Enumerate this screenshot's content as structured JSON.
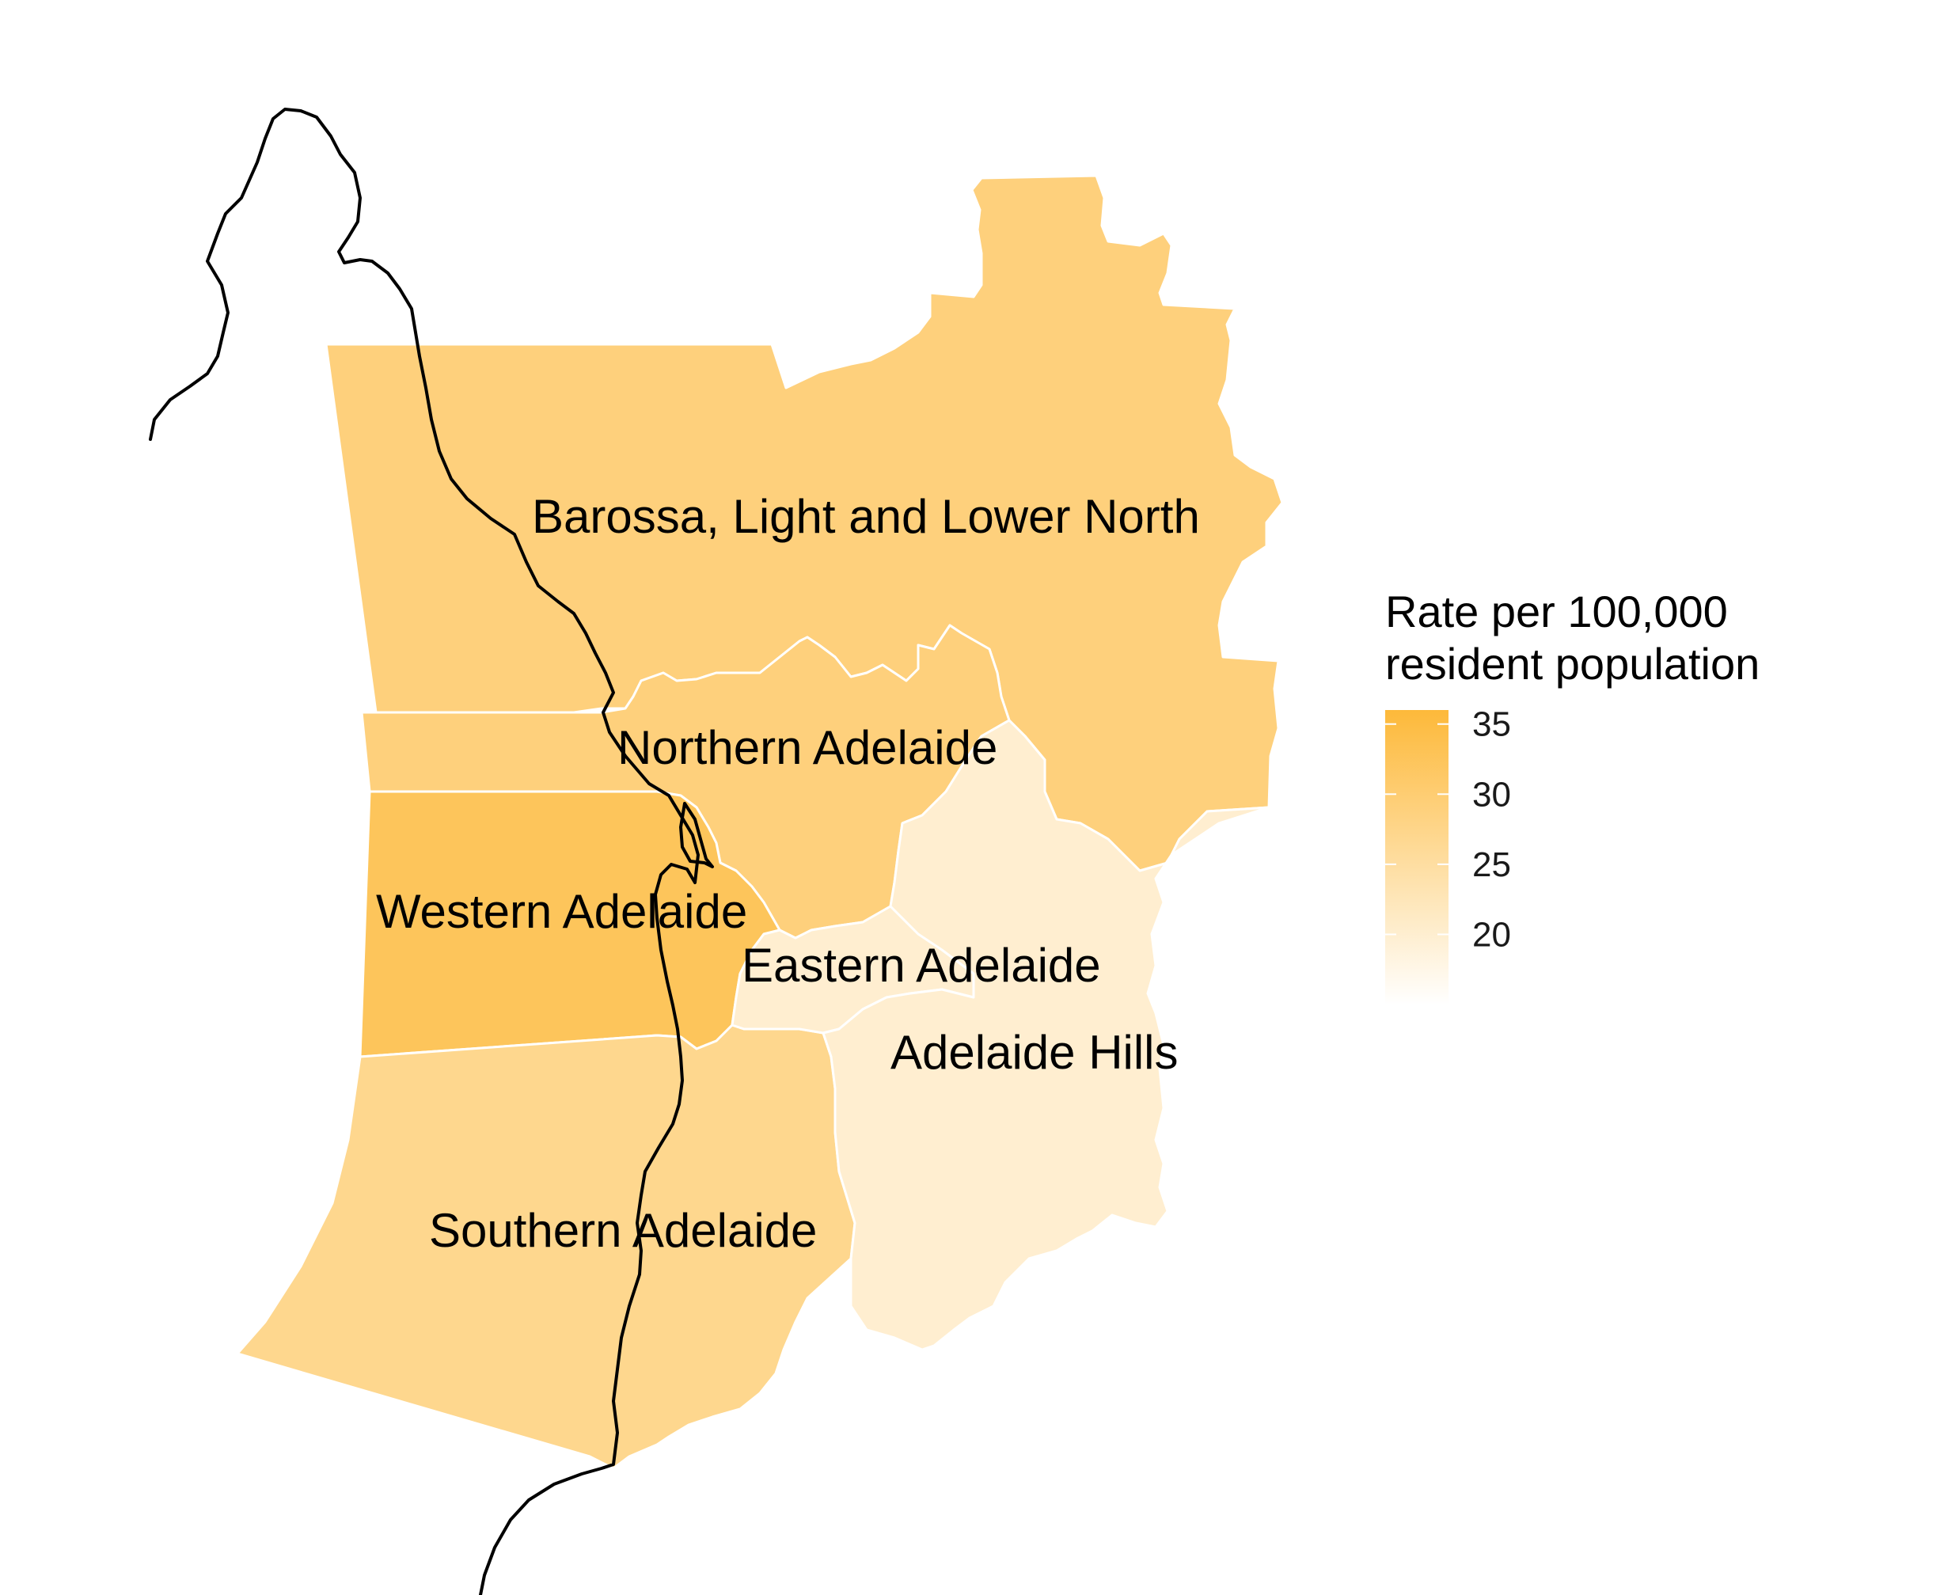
{
  "map": {
    "regions": [
      {
        "id": "barossa",
        "name": "Barossa, Light and Lower North",
        "rate": 29.0
      },
      {
        "id": "northern",
        "name": "Northern Adelaide",
        "rate": 29.0
      },
      {
        "id": "western",
        "name": "Western Adelaide",
        "rate": 32.5
      },
      {
        "id": "eastern",
        "name": "Eastern Adelaide",
        "rate": 20.0
      },
      {
        "id": "hills",
        "name": "Adelaide Hills",
        "rate": 20.0
      },
      {
        "id": "southern",
        "name": "Southern Adelaide",
        "rate": 27.0
      }
    ]
  },
  "legend": {
    "title_line1": "Rate per 100,000",
    "title_line2": "resident population",
    "ticks": [
      "35",
      "30",
      "25",
      "20"
    ],
    "tick_values": [
      35,
      30,
      25,
      20
    ],
    "range": [
      15,
      36
    ],
    "color_low": "#ffffff",
    "color_high": "#fdb93a"
  }
}
